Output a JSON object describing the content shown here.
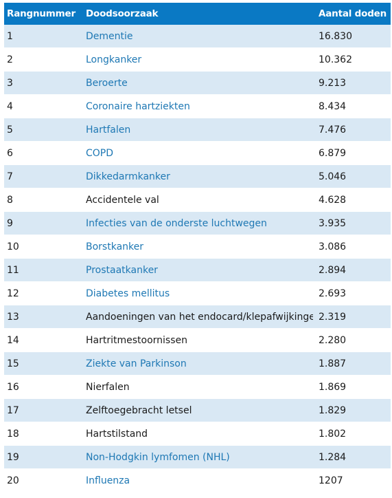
{
  "header": {
    "rank": "Rangnummer",
    "cause": "Doodsoorzaak",
    "deaths": "Aantal doden"
  },
  "colors": {
    "header_bg": "#0a79c4",
    "stripe_bg": "#d9e8f4",
    "link": "#1e78b4"
  },
  "rows": [
    {
      "rank": "1",
      "cause": "Dementie",
      "deaths": "16.830",
      "link": true
    },
    {
      "rank": "2",
      "cause": "Longkanker",
      "deaths": "10.362",
      "link": true
    },
    {
      "rank": "3",
      "cause": "Beroerte",
      "deaths": "9.213",
      "link": true
    },
    {
      "rank": "4",
      "cause": "Coronaire hartziekten",
      "deaths": "8.434",
      "link": true
    },
    {
      "rank": "5",
      "cause": "Hartfalen",
      "deaths": "7.476",
      "link": true
    },
    {
      "rank": "6",
      "cause": "COPD",
      "deaths": "6.879",
      "link": true
    },
    {
      "rank": "7",
      "cause": "Dikkedarmkanker",
      "deaths": "5.046",
      "link": true
    },
    {
      "rank": "8",
      "cause": "Accidentele val",
      "deaths": "4.628",
      "link": false
    },
    {
      "rank": "9",
      "cause": "Infecties van de onderste luchtwegen",
      "deaths": "3.935",
      "link": true
    },
    {
      "rank": "10",
      "cause": "Borstkanker",
      "deaths": "3.086",
      "link": true
    },
    {
      "rank": "11",
      "cause": "Prostaatkanker",
      "deaths": "2.894",
      "link": true
    },
    {
      "rank": "12",
      "cause": "Diabetes mellitus",
      "deaths": "2.693",
      "link": true
    },
    {
      "rank": "13",
      "cause": "Aandoeningen van het endocard/klepafwijkingen",
      "deaths": "2.319",
      "link": false
    },
    {
      "rank": "14",
      "cause": "Hartritmestoornissen",
      "deaths": "2.280",
      "link": false
    },
    {
      "rank": "15",
      "cause": "Ziekte van Parkinson",
      "deaths": "1.887",
      "link": true
    },
    {
      "rank": "16",
      "cause": "Nierfalen",
      "deaths": "1.869",
      "link": false
    },
    {
      "rank": "17",
      "cause": "Zelftoegebracht letsel",
      "deaths": "1.829",
      "link": false
    },
    {
      "rank": "18",
      "cause": "Hartstilstand",
      "deaths": "1.802",
      "link": false
    },
    {
      "rank": "19",
      "cause": "Non-Hodgkin lymfomen (NHL)",
      "deaths": "1.284",
      "link": true
    },
    {
      "rank": "20",
      "cause": "Influenza",
      "deaths": "1207",
      "link": true
    }
  ]
}
